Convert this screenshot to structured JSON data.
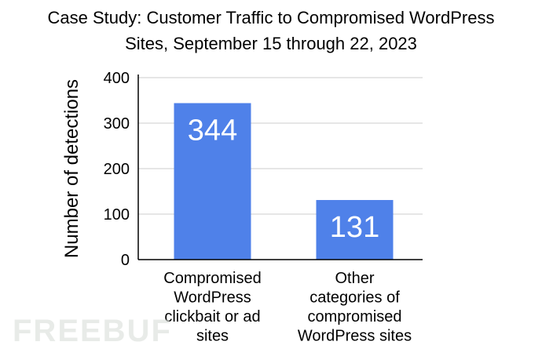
{
  "chart_data": {
    "type": "bar",
    "title": [
      "Case Study: Customer Traffic to Compromised WordPress",
      "Sites, September 15 through 22, 2023"
    ],
    "ylabel": "Number of detections",
    "xlabel": "",
    "categories": [
      [
        "Compromised",
        "WordPress",
        "clickbait or ad",
        "sites"
      ],
      [
        "Other",
        "categories of",
        "compromised",
        "WordPress sites"
      ]
    ],
    "values": [
      344,
      131
    ],
    "data_labels": [
      "344",
      "131"
    ],
    "ylim": [
      0,
      400
    ],
    "yticks": [
      0,
      100,
      200,
      300,
      400
    ],
    "grid": true,
    "legend": "none",
    "bar_color": "#4f81e9",
    "label_color": "#ffffff",
    "grid_color": "#cccccc"
  },
  "watermark": "FREEBUF"
}
